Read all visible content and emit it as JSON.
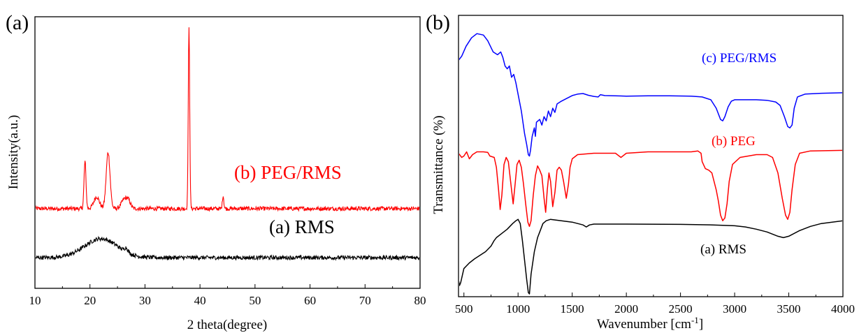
{
  "chart_data": [
    {
      "panel": "(a)",
      "type": "line",
      "xlabel": "2 theta(degree)",
      "ylabel": "Intensity(a.u.)",
      "xlim": [
        10,
        80
      ],
      "xticks": [
        10,
        20,
        30,
        40,
        50,
        60,
        70,
        80
      ],
      "y_ticks_shown": false,
      "grid": false,
      "series": [
        {
          "name": "(b) PEG/RMS",
          "color": "#ff0000",
          "baseline": 0.35,
          "noise": 0.035,
          "peaks": [
            {
              "x": 19.1,
              "height": 0.8,
              "width": 0.18
            },
            {
              "x": 21.2,
              "height": 0.2,
              "width": 0.5
            },
            {
              "x": 23.3,
              "height": 0.95,
              "width": 0.35
            },
            {
              "x": 26.2,
              "height": 0.15,
              "width": 0.5
            },
            {
              "x": 27.0,
              "height": 0.12,
              "width": 0.4
            },
            {
              "x": 38.0,
              "height": 3.05,
              "width": 0.13
            },
            {
              "x": 44.2,
              "height": 0.22,
              "width": 0.13
            }
          ]
        },
        {
          "name": "(a) RMS",
          "color": "#000000",
          "baseline": -0.48,
          "noise": 0.035,
          "peaks": [
            {
              "x": 22.0,
              "height": 0.32,
              "width": 3.0
            },
            {
              "x": 26.6,
              "height": 0.07,
              "width": 0.3
            }
          ]
        }
      ],
      "y_view": [
        -1.0,
        3.6
      ]
    },
    {
      "panel": "(b)",
      "type": "line",
      "xlabel": "Wavenumber [cm⁻¹]",
      "xlabel_base": "Wavenumber [cm",
      "xlabel_sup": "-1",
      "xlabel_close": "]",
      "ylabel": "Transmittance (%)",
      "xlim": [
        450,
        4000
      ],
      "xticks": [
        500,
        1000,
        1500,
        2000,
        2500,
        3000,
        3500,
        4000
      ],
      "y_ticks_shown": false,
      "grid": false,
      "y_view": [
        0,
        100
      ],
      "series": [
        {
          "name": "(c) PEG/RMS",
          "color": "#0000ff",
          "points": [
            [
              450,
              84
            ],
            [
              480,
              85.5
            ],
            [
              520,
              89
            ],
            [
              570,
              92
            ],
            [
              620,
              93.5
            ],
            [
              680,
              93
            ],
            [
              720,
              91
            ],
            [
              770,
              87
            ],
            [
              810,
              86
            ],
            [
              840,
              87
            ],
            [
              860,
              85
            ],
            [
              880,
              82
            ],
            [
              900,
              81
            ],
            [
              920,
              82
            ],
            [
              940,
              78
            ],
            [
              960,
              79
            ],
            [
              980,
              76
            ],
            [
              1000,
              72
            ],
            [
              1030,
              66
            ],
            [
              1060,
              58
            ],
            [
              1080,
              54
            ],
            [
              1095,
              50.5
            ],
            [
              1105,
              50
            ],
            [
              1115,
              52
            ],
            [
              1130,
              57
            ],
            [
              1150,
              60
            ],
            [
              1160,
              57
            ],
            [
              1170,
              62
            ],
            [
              1200,
              63
            ],
            [
              1220,
              61
            ],
            [
              1240,
              64
            ],
            [
              1260,
              62.5
            ],
            [
              1280,
              66
            ],
            [
              1300,
              64
            ],
            [
              1320,
              67
            ],
            [
              1340,
              65.5
            ],
            [
              1360,
              68.5
            ],
            [
              1400,
              69.5
            ],
            [
              1450,
              70.5
            ],
            [
              1500,
              71.5
            ],
            [
              1550,
              72
            ],
            [
              1600,
              72.2
            ],
            [
              1650,
              71.6
            ],
            [
              1700,
              71.2
            ],
            [
              1740,
              71
            ],
            [
              1760,
              71.8
            ],
            [
              1800,
              71.5
            ],
            [
              2000,
              71.3
            ],
            [
              2200,
              71.4
            ],
            [
              2400,
              71.4
            ],
            [
              2600,
              71.3
            ],
            [
              2700,
              71
            ],
            [
              2780,
              70
            ],
            [
              2830,
              67
            ],
            [
              2870,
              63
            ],
            [
              2890,
              62.5
            ],
            [
              2910,
              64
            ],
            [
              2940,
              67.5
            ],
            [
              2970,
              69.5
            ],
            [
              3000,
              70
            ],
            [
              3100,
              70
            ],
            [
              3200,
              70
            ],
            [
              3300,
              69.8
            ],
            [
              3380,
              69.2
            ],
            [
              3420,
              68
            ],
            [
              3460,
              64
            ],
            [
              3490,
              60.5
            ],
            [
              3510,
              60
            ],
            [
              3530,
              61
            ],
            [
              3550,
              67
            ],
            [
              3580,
              71
            ],
            [
              3650,
              72
            ],
            [
              3800,
              72.3
            ],
            [
              4000,
              72.5
            ]
          ]
        },
        {
          "name": "(b) PEG",
          "color": "#ff0000",
          "points": [
            [
              450,
              51
            ],
            [
              480,
              49.5
            ],
            [
              500,
              50
            ],
            [
              525,
              51.5
            ],
            [
              550,
              49
            ],
            [
              580,
              50.5
            ],
            [
              620,
              51.5
            ],
            [
              680,
              51.5
            ],
            [
              720,
              51.3
            ],
            [
              740,
              50
            ],
            [
              780,
              49.5
            ],
            [
              800,
              46
            ],
            [
              820,
              38
            ],
            [
              835,
              31
            ],
            [
              850,
              36
            ],
            [
              870,
              47
            ],
            [
              890,
              49.5
            ],
            [
              910,
              48
            ],
            [
              940,
              38
            ],
            [
              955,
              33
            ],
            [
              970,
              39
            ],
            [
              990,
              47
            ],
            [
              1010,
              48.5
            ],
            [
              1030,
              46
            ],
            [
              1050,
              40
            ],
            [
              1070,
              33
            ],
            [
              1090,
              26.5
            ],
            [
              1105,
              25
            ],
            [
              1120,
              27
            ],
            [
              1140,
              36
            ],
            [
              1160,
              43
            ],
            [
              1180,
              46.5
            ],
            [
              1200,
              45
            ],
            [
              1220,
              43
            ],
            [
              1240,
              35
            ],
            [
              1255,
              30
            ],
            [
              1270,
              38
            ],
            [
              1285,
              44
            ],
            [
              1300,
              41
            ],
            [
              1320,
              32
            ],
            [
              1340,
              37
            ],
            [
              1360,
              45
            ],
            [
              1380,
              46
            ],
            [
              1400,
              45
            ],
            [
              1420,
              41
            ],
            [
              1445,
              35
            ],
            [
              1465,
              40
            ],
            [
              1480,
              46
            ],
            [
              1500,
              49
            ],
            [
              1550,
              50.5
            ],
            [
              1700,
              51
            ],
            [
              1900,
              51
            ],
            [
              1950,
              49.5
            ],
            [
              2000,
              51
            ],
            [
              2200,
              51.5
            ],
            [
              2400,
              51.5
            ],
            [
              2600,
              51.5
            ],
            [
              2660,
              51.8
            ],
            [
              2690,
              51
            ],
            [
              2700,
              48
            ],
            [
              2730,
              45.5
            ],
            [
              2760,
              45
            ],
            [
              2790,
              44
            ],
            [
              2810,
              41
            ],
            [
              2830,
              38
            ],
            [
              2850,
              34
            ],
            [
              2870,
              29
            ],
            [
              2890,
              27
            ],
            [
              2910,
              28
            ],
            [
              2930,
              33
            ],
            [
              2950,
              41
            ],
            [
              2980,
              47
            ],
            [
              3050,
              49.5
            ],
            [
              3200,
              50.5
            ],
            [
              3300,
              50.5
            ],
            [
              3350,
              49.5
            ],
            [
              3400,
              44
            ],
            [
              3440,
              35
            ],
            [
              3470,
              29
            ],
            [
              3490,
              27.5
            ],
            [
              3510,
              30
            ],
            [
              3530,
              38
            ],
            [
              3560,
              47
            ],
            [
              3600,
              51
            ],
            [
              3700,
              51.8
            ],
            [
              4000,
              52
            ]
          ]
        },
        {
          "name": "(a) RMS",
          "color": "#000000",
          "points": [
            [
              450,
              6
            ],
            [
              460,
              4
            ],
            [
              470,
              5
            ],
            [
              500,
              10
            ],
            [
              550,
              12
            ],
            [
              600,
              13.5
            ],
            [
              700,
              16
            ],
            [
              750,
              18
            ],
            [
              780,
              20
            ],
            [
              800,
              21
            ],
            [
              850,
              22.5
            ],
            [
              900,
              24
            ],
            [
              950,
              26
            ],
            [
              980,
              27
            ],
            [
              1000,
              27.5
            ],
            [
              1020,
              26
            ],
            [
              1040,
              20
            ],
            [
              1060,
              13
            ],
            [
              1080,
              6
            ],
            [
              1095,
              1.5
            ],
            [
              1105,
              1
            ],
            [
              1120,
              8
            ],
            [
              1150,
              16
            ],
            [
              1180,
              21
            ],
            [
              1200,
              23
            ],
            [
              1230,
              26
            ],
            [
              1260,
              27
            ],
            [
              1300,
              27.5
            ],
            [
              1400,
              27
            ],
            [
              1500,
              26.5
            ],
            [
              1600,
              25.5
            ],
            [
              1630,
              24.8
            ],
            [
              1660,
              25.5
            ],
            [
              1700,
              25.8
            ],
            [
              2000,
              25.8
            ],
            [
              2500,
              25.7
            ],
            [
              2800,
              25.5
            ],
            [
              3000,
              25.2
            ],
            [
              3100,
              24.8
            ],
            [
              3200,
              24
            ],
            [
              3300,
              23
            ],
            [
              3400,
              21.5
            ],
            [
              3450,
              21
            ],
            [
              3500,
              21.5
            ],
            [
              3600,
              23.5
            ],
            [
              3700,
              25
            ],
            [
              3800,
              26
            ],
            [
              4000,
              27
            ]
          ]
        }
      ]
    }
  ],
  "annotations": {
    "panel_a_label": "(a)",
    "panel_b_label": "(b)",
    "a_series_b_label": "(b) PEG/RMS",
    "a_series_a_label": "(a) RMS",
    "b_series_c_label": "(c) PEG/RMS",
    "b_series_b_label": "(b) PEG",
    "b_series_a_label": "(a) RMS"
  }
}
